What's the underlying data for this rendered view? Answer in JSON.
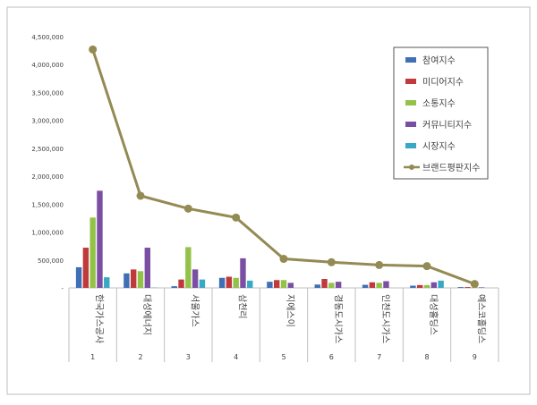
{
  "chart_data": {
    "type": "bar",
    "categories": [
      "한국가스공사",
      "대성에너지",
      "서울가스",
      "삼천리",
      "지에스이",
      "경동도시가스",
      "인천도시가스",
      "대성홀딩스",
      "예스코홀딩스"
    ],
    "category_numbers": [
      "1",
      "2",
      "3",
      "4",
      "5",
      "6",
      "7",
      "8",
      "9"
    ],
    "y_ticks": [
      "4,500,000",
      "4,000,000",
      "3,500,000",
      "3,000,000",
      "2,500,000",
      "2,000,000",
      "1,500,000",
      "1,000,000",
      "500,000",
      "-"
    ],
    "ylim": [
      0,
      4500000
    ],
    "grid": false,
    "legend_position": "top-right",
    "series": [
      {
        "name": "참여지수",
        "color": "#3f6fb5",
        "values": [
          370000,
          260000,
          30000,
          180000,
          110000,
          60000,
          55000,
          40000,
          15000
        ]
      },
      {
        "name": "미디어지수",
        "color": "#c0393b",
        "values": [
          720000,
          330000,
          150000,
          200000,
          140000,
          160000,
          100000,
          50000,
          15000
        ]
      },
      {
        "name": "소통지수",
        "color": "#93c249",
        "values": [
          1260000,
          300000,
          730000,
          180000,
          140000,
          90000,
          90000,
          50000,
          15000
        ]
      },
      {
        "name": "커뮤니티지수",
        "color": "#7a4fa3",
        "values": [
          1740000,
          720000,
          330000,
          530000,
          90000,
          110000,
          120000,
          100000,
          10000
        ]
      },
      {
        "name": "시장지수",
        "color": "#38a8c5",
        "values": [
          190000,
          5000,
          150000,
          130000,
          0,
          0,
          0,
          130000,
          0
        ]
      },
      {
        "name": "브랜드평판지수",
        "color": "#948a54",
        "type": "line",
        "values": [
          4270000,
          1650000,
          1420000,
          1260000,
          520000,
          460000,
          410000,
          390000,
          70000
        ]
      }
    ]
  }
}
